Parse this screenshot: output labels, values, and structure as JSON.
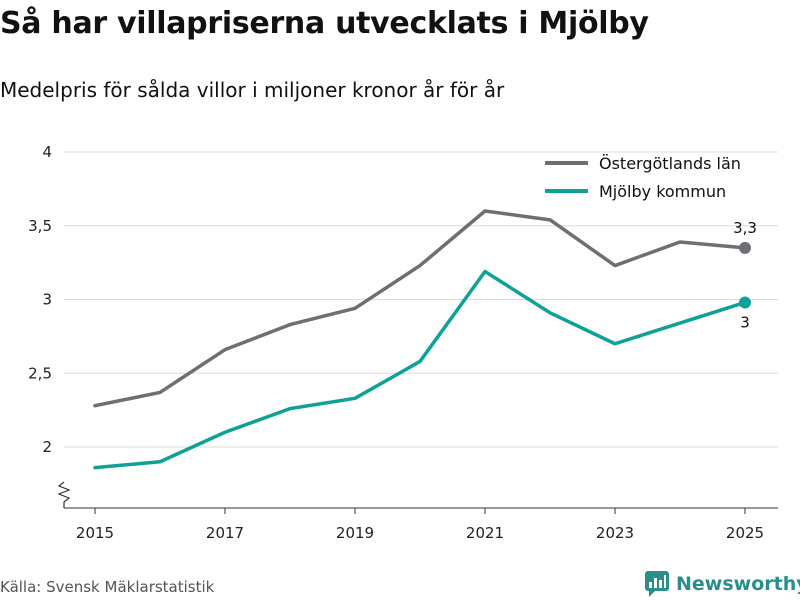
{
  "header": {
    "title": "Så har villapriserna utvecklats i Mjölby",
    "subtitle": "Medelpris för sålda villor i miljoner kronor år för år"
  },
  "footer": {
    "source": "Källa: Svensk Mäklarstatistik",
    "brand": "Newsworthy"
  },
  "colors": {
    "lan": "#6e6e73",
    "kommun": "#0fa198",
    "grid": "#dcdcdc",
    "axis": "#333333",
    "brand": "#2a8f8a"
  },
  "chart_data": {
    "type": "line",
    "title": "Så har villapriserna utvecklats i Mjölby",
    "subtitle": "Medelpris för sålda villor i miljoner kronor år för år",
    "xlabel": "",
    "ylabel": "",
    "x": [
      2015,
      2016,
      2017,
      2018,
      2019,
      2020,
      2021,
      2022,
      2023,
      2024,
      2025
    ],
    "xticks": [
      "2015",
      "2017",
      "2019",
      "2021",
      "2023",
      "2025"
    ],
    "yticks": [
      2,
      2.5,
      3,
      3.5,
      4
    ],
    "ytick_labels": [
      "2",
      "2,5",
      "3",
      "3,5",
      "4"
    ],
    "ylim": [
      1.6,
      4
    ],
    "axis_break": true,
    "legend_position": "top-right",
    "series": [
      {
        "name": "Östergötlands län",
        "color": "#6e6e73",
        "values": [
          2.28,
          2.37,
          2.66,
          2.83,
          2.94,
          3.23,
          3.6,
          3.54,
          3.23,
          3.39,
          3.35
        ],
        "end_label": "3,3"
      },
      {
        "name": "Mjölby kommun",
        "color": "#0fa198",
        "values": [
          1.86,
          1.9,
          2.1,
          2.26,
          2.33,
          2.58,
          3.19,
          2.91,
          2.7,
          2.84,
          2.98
        ],
        "end_label": "3"
      }
    ]
  }
}
